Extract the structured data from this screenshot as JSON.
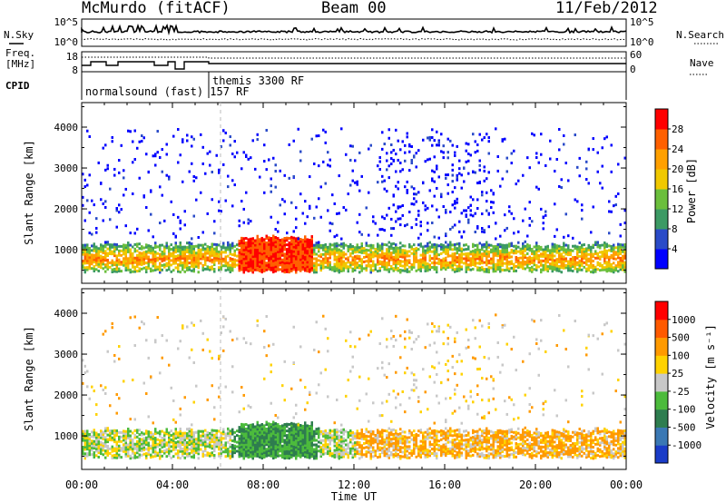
{
  "header": {
    "station": "McMurdo (fitACF)",
    "beam": "Beam 00",
    "date": "11/Feb/2012"
  },
  "top_panels": {
    "nsky_label": "N.Sky",
    "nsearch_label": "N.Search",
    "noise_ticks": [
      "10^5",
      "10^0"
    ],
    "freq_label_1": "Freq.",
    "freq_label_2": "[MHz]",
    "freq_ticks": [
      "18",
      "8"
    ],
    "nave_label": "Nave",
    "nave_ticks": [
      "60",
      "0"
    ],
    "cpid_label": "CPID",
    "cpid_mode_1": "normalsound (fast) 157 RF",
    "cpid_mode_2": "themis 3300 RF"
  },
  "x_axis": {
    "label": "Time UT",
    "ticks": [
      "00:00",
      "04:00",
      "08:00",
      "12:00",
      "16:00",
      "20:00",
      "00:00"
    ],
    "range_hours": [
      0,
      24
    ]
  },
  "colors": {
    "power_scale": [
      "#0000ff",
      "#2a4bc8",
      "#3c9a64",
      "#6bbf3c",
      "#f0c800",
      "#ffa000",
      "#ff6000",
      "#ff0000"
    ],
    "velocity_scale": [
      "#1a3cc8",
      "#3a78b4",
      "#2e7d4f",
      "#4cbb3c",
      "#c8c8c8",
      "#ffd200",
      "#ff9a00",
      "#ff5a00",
      "#ff0000"
    ]
  },
  "chart_data": [
    {
      "type": "heatmap",
      "title": "",
      "ylabel": "Slant Range [km]",
      "xlabel": "",
      "ylim": [
        180,
        4600
      ],
      "yticks": [
        "1000",
        "2000",
        "3000",
        "4000"
      ],
      "colorbar": {
        "label": "Power [dB]",
        "ticks": [
          "28",
          "24",
          "20",
          "16",
          "12",
          "8",
          "4"
        ],
        "range": [
          0,
          32
        ]
      }
    },
    {
      "type": "heatmap",
      "title": "",
      "ylabel": "Slant Range [km]",
      "xlabel": "Time UT",
      "ylim": [
        180,
        4600
      ],
      "yticks": [
        "1000",
        "2000",
        "3000",
        "4000"
      ],
      "colorbar": {
        "label": "Velocity [m s⁻¹]",
        "ticks": [
          "1000",
          "500",
          "100",
          "25",
          "-25",
          "-100",
          "-500",
          "-1000"
        ]
      }
    }
  ]
}
